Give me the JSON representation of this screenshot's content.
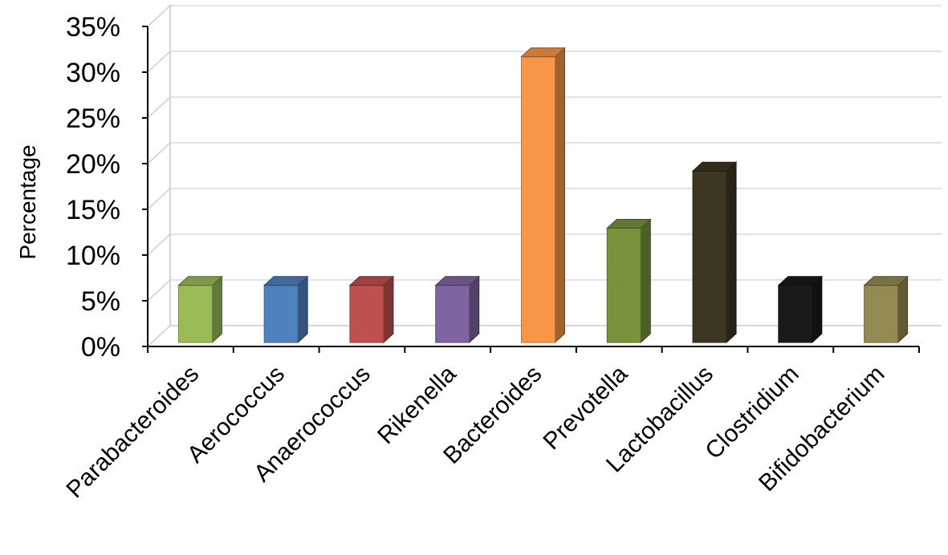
{
  "chart_data": {
    "type": "bar",
    "style": "3d-column",
    "ylabel": "Percentage",
    "xlabel": "",
    "ylim": [
      0,
      35
    ],
    "yticks": [
      0,
      5,
      10,
      15,
      20,
      25,
      30,
      35
    ],
    "ytick_labels": [
      "0%",
      "5%",
      "10%",
      "15%",
      "20%",
      "25%",
      "30%",
      "35%"
    ],
    "grid": true,
    "legend": false,
    "categories": [
      "Parabacteroides",
      "Aerococcus",
      "Anaerococcus",
      "Rikenella",
      "Bacteroides",
      "Prevotella",
      "Lactobacillus",
      "Clostridium",
      "Bifidobacterium"
    ],
    "values": [
      6.25,
      6.25,
      6.25,
      6.25,
      31.25,
      12.5,
      18.75,
      6.25,
      6.25
    ],
    "colors": [
      "#9bbb59",
      "#4f81bd",
      "#c0504d",
      "#8064a2",
      "#f79646",
      "#77933c",
      "#3d3623",
      "#1a1a1a",
      "#948a54"
    ]
  }
}
